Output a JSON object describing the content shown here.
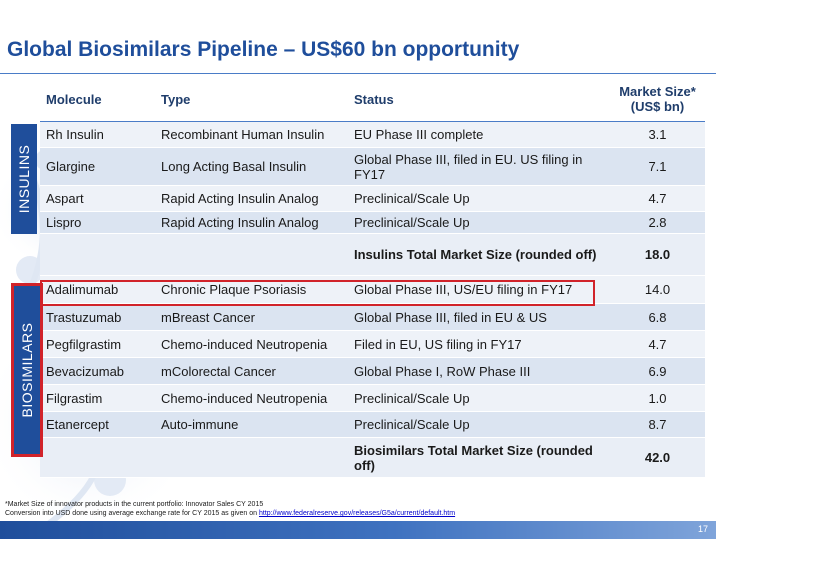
{
  "slide": {
    "title": "Global Biosimilars Pipeline – US$60 bn opportunity",
    "page_number": "17"
  },
  "table": {
    "headers": {
      "molecule": "Molecule",
      "type": "Type",
      "status": "Status",
      "market_size_line1": "Market Size*",
      "market_size_line2": "(US$ bn)"
    },
    "insulins_label": "INSULINS",
    "biosimilars_label": "BIOSIMILARS",
    "insulins": [
      {
        "molecule": "Rh Insulin",
        "type": "Recombinant Human Insulin",
        "status": "EU Phase III complete",
        "size": "3.1"
      },
      {
        "molecule": "Glargine",
        "type": "Long Acting Basal Insulin",
        "status": "Global Phase III, filed in EU. US filing in FY17",
        "size": "7.1"
      },
      {
        "molecule": "Aspart",
        "type": "Rapid Acting Insulin Analog",
        "status": "Preclinical/Scale Up",
        "size": "4.7"
      },
      {
        "molecule": "Lispro",
        "type": "Rapid Acting Insulin Analog",
        "status": "Preclinical/Scale Up",
        "size": "2.8"
      }
    ],
    "insulins_total": {
      "label": "Insulins Total Market Size (rounded off)",
      "size": "18.0"
    },
    "biosimilars": [
      {
        "molecule": "Adalimumab",
        "type": "Chronic Plaque Psoriasis",
        "status": "Global Phase III, US/EU filing in FY17",
        "size": "14.0"
      },
      {
        "molecule": "Trastuzumab",
        "type": "mBreast Cancer",
        "status": "Global Phase III, filed in EU & US",
        "size": "6.8"
      },
      {
        "molecule": "Pegfilgrastim",
        "type": "Chemo-induced Neutropenia",
        "status": "Filed in EU, US filing in FY17",
        "size": "4.7"
      },
      {
        "molecule": "Bevacizumab",
        "type": "mColorectal Cancer",
        "status": "Global Phase I, RoW Phase III",
        "size": "6.9"
      },
      {
        "molecule": "Filgrastim",
        "type": "Chemo-induced Neutropenia",
        "status": "Preclinical/Scale Up",
        "size": "1.0"
      },
      {
        "molecule": "Etanercept",
        "type": "Auto-immune",
        "status": "Preclinical/Scale Up",
        "size": "8.7"
      }
    ],
    "biosimilars_total": {
      "label": "Biosimilars Total Market Size (rounded off)",
      "size": "42.0"
    }
  },
  "footnote": {
    "line1": "*Market Size of innovator products in the current portfolio: Innovator Sales CY 2015",
    "line2_prefix": " Conversion into USD done using average exchange rate for CY 2015 as given on ",
    "link_text": "http://www.federalreserve.gov/releases/G5a/current/default.htm"
  },
  "colors": {
    "title": "#1f4e9b",
    "side_label_bg": "#1f4e9b",
    "highlight": "#d1232a",
    "row_light": "#eef2f8",
    "row_mid": "#dbe4f1"
  }
}
